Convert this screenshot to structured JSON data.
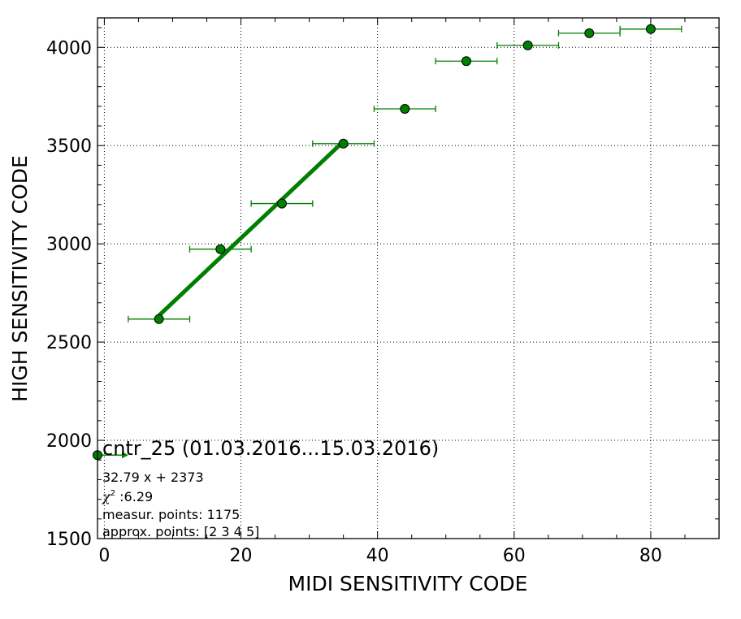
{
  "chart_data": {
    "type": "scatter",
    "xlabel": "MIDI SENSITIVITY CODE",
    "ylabel": "HIGH SENSITIVITY CODE",
    "xlim": [
      -1,
      90
    ],
    "ylim": [
      1500,
      4150
    ],
    "xticks": [
      0,
      20,
      40,
      60,
      80
    ],
    "yticks": [
      1500,
      2000,
      2500,
      3000,
      3500,
      4000
    ],
    "grid": true,
    "points": [
      {
        "x": 8,
        "y": 2617,
        "xerr": 4.5,
        "yerr": 8
      },
      {
        "x": 17,
        "y": 2973,
        "xerr": 4.5,
        "yerr": 18
      },
      {
        "x": 26,
        "y": 3205,
        "xerr": 4.5,
        "yerr": 22
      },
      {
        "x": 35,
        "y": 3510,
        "xerr": 4.5,
        "yerr": 12
      },
      {
        "x": 44,
        "y": 3687,
        "xerr": 4.5,
        "yerr": 22
      },
      {
        "x": 53,
        "y": 3930,
        "xerr": 4.5,
        "yerr": 12
      },
      {
        "x": 62,
        "y": 4010,
        "xerr": 4.5,
        "yerr": 12
      },
      {
        "x": 71,
        "y": 4072,
        "xerr": 4.5,
        "yerr": 8
      },
      {
        "x": 80,
        "y": 4093,
        "xerr": 4.5,
        "yerr": 8
      }
    ],
    "fit": {
      "slope": 32.79,
      "intercept": 2373,
      "x_range": [
        8,
        35
      ]
    },
    "legend_marker": {
      "y": 1925
    },
    "annotation": {
      "title": "cntr_25 (01.03.2016...15.03.2016)",
      "equation": "32.79 x + 2373",
      "chi2_symbol": "χ",
      "chi2_sup": "2",
      "chi2_value": " :6.29",
      "measured": "measur. points: 1175",
      "approx": "approx. points: [2 3 4 5]"
    },
    "colors": {
      "marker": "#007f00",
      "marker_edge": "#000000",
      "fit": "#007f00",
      "errorbar": "#007f00",
      "grid": "#000000"
    }
  }
}
